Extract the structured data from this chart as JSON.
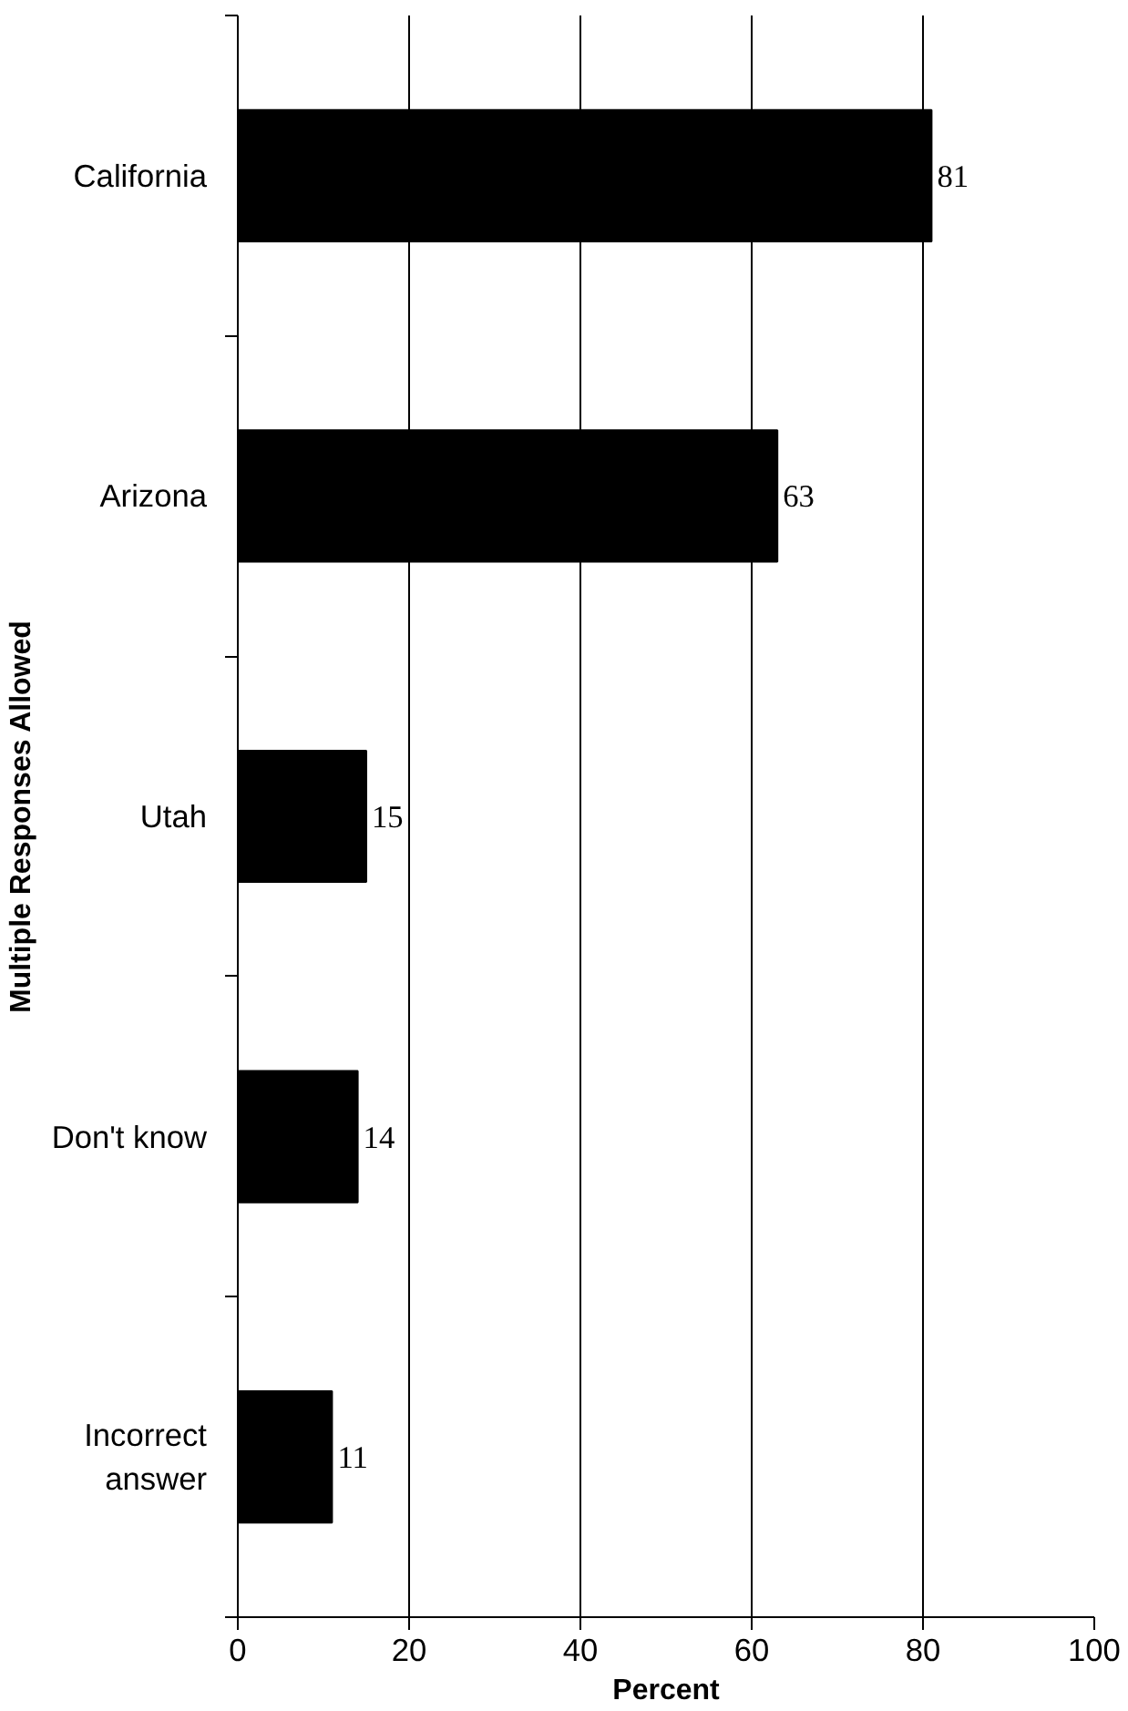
{
  "chart_data": {
    "type": "bar",
    "orientation": "horizontal",
    "xlabel": "Percent",
    "ylabel": "Multiple Responses Allowed",
    "categories": [
      "California",
      "Arizona",
      "Utah",
      "Don't know",
      "Incorrect answer"
    ],
    "values": [
      81,
      63,
      15,
      14,
      11
    ],
    "color": "#000000",
    "xlim": [
      0,
      100
    ],
    "xticks": [
      0,
      20,
      40,
      60,
      80,
      100
    ],
    "grid": "x",
    "data_labels": true
  }
}
